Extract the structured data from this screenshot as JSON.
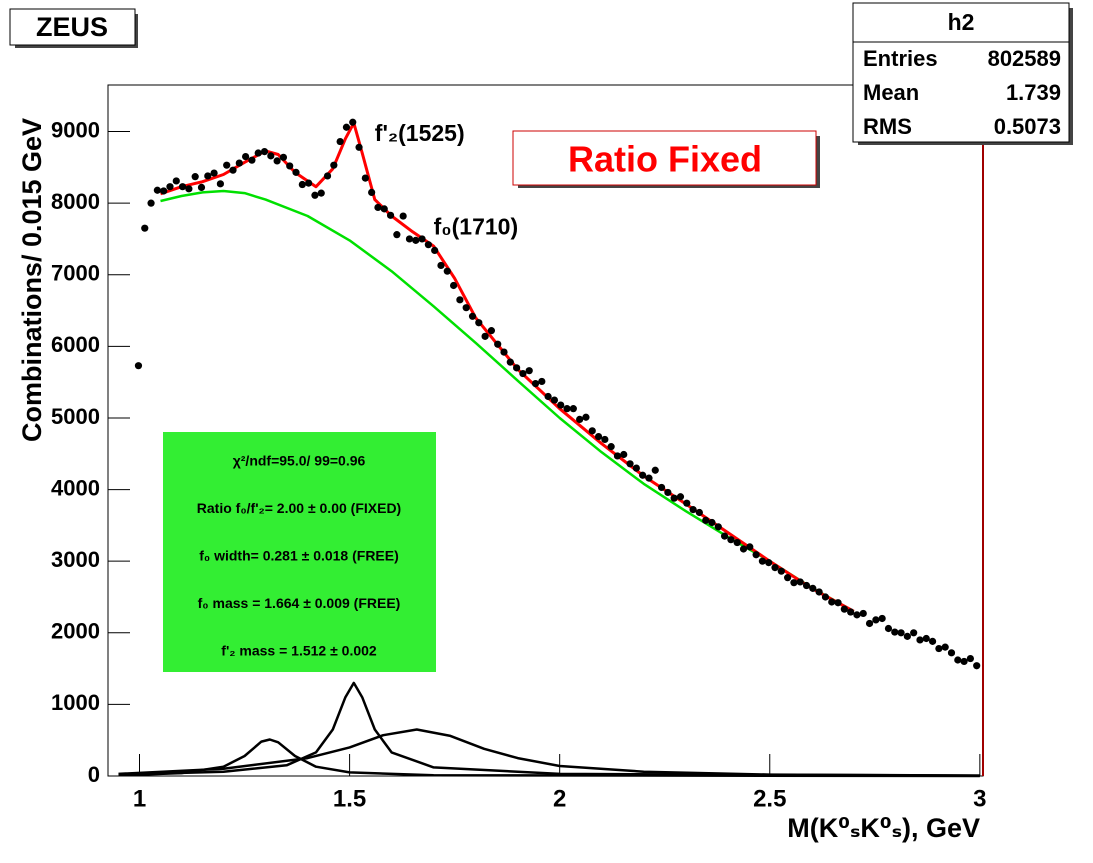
{
  "chart_data": {
    "type": "scatter",
    "x_label": "M(K⁰ₛK⁰ₛ), GeV",
    "y_label": "Combinations/ 0.015 GeV",
    "xlim": [
      0.925,
      3.0075
    ],
    "ylim": [
      0,
      9650
    ],
    "xticks": [
      1,
      1.5,
      2,
      2.5,
      3
    ],
    "yticks": [
      0,
      1000,
      2000,
      3000,
      4000,
      5000,
      6000,
      7000,
      8000,
      9000
    ],
    "color": "#000000",
    "x": [
      0.9975,
      1.0125,
      1.0275,
      1.0425,
      1.0575,
      1.0725,
      1.0875,
      1.1025,
      1.1175,
      1.1325,
      1.1475,
      1.1625,
      1.1775,
      1.1925,
      1.2075,
      1.2225,
      1.2375,
      1.2525,
      1.2675,
      1.2825,
      1.2975,
      1.3125,
      1.3275,
      1.3425,
      1.3575,
      1.3725,
      1.3875,
      1.4025,
      1.4175,
      1.4325,
      1.4475,
      1.4625,
      1.4775,
      1.4925,
      1.5075,
      1.5225,
      1.5375,
      1.5525,
      1.5675,
      1.5825,
      1.5975,
      1.6125,
      1.6275,
      1.6425,
      1.6575,
      1.6725,
      1.6875,
      1.7025,
      1.7175,
      1.7325,
      1.7475,
      1.7625,
      1.7775,
      1.7925,
      1.8075,
      1.8225,
      1.8375,
      1.8525,
      1.8675,
      1.8825,
      1.8975,
      1.9125,
      1.9275,
      1.9425,
      1.9575,
      1.9725,
      1.9875,
      2.0025,
      2.0175,
      2.0325,
      2.0475,
      2.0625,
      2.0775,
      2.0925,
      2.1075,
      2.1225,
      2.1375,
      2.1525,
      2.1675,
      2.1825,
      2.1975,
      2.2125,
      2.2275,
      2.2425,
      2.2575,
      2.2725,
      2.2875,
      2.3025,
      2.3175,
      2.3325,
      2.3475,
      2.3625,
      2.3775,
      2.3925,
      2.4075,
      2.4225,
      2.4375,
      2.4525,
      2.4675,
      2.4825,
      2.4975,
      2.5125,
      2.5275,
      2.5425,
      2.5575,
      2.5725,
      2.5875,
      2.6025,
      2.6175,
      2.6325,
      2.6475,
      2.6625,
      2.6775,
      2.6925,
      2.7075,
      2.7225,
      2.7375,
      2.7525,
      2.7675,
      2.7825,
      2.7975,
      2.8125,
      2.8275,
      2.8425,
      2.8575,
      2.8725,
      2.8875,
      2.9025,
      2.9175,
      2.9325,
      2.9475,
      2.9625,
      2.9775,
      2.9925
    ],
    "values": [
      5730,
      7650,
      8000,
      8180,
      8170,
      8230,
      8310,
      8230,
      8200,
      8370,
      8220,
      8380,
      8420,
      8270,
      8530,
      8460,
      8560,
      8650,
      8600,
      8700,
      8720,
      8660,
      8590,
      8640,
      8520,
      8430,
      8260,
      8280,
      8110,
      8140,
      8380,
      8530,
      8860,
      9060,
      9130,
      8780,
      8350,
      8150,
      7940,
      7920,
      7830,
      7560,
      7820,
      7500,
      7480,
      7500,
      7420,
      7340,
      7130,
      7050,
      6850,
      6650,
      6540,
      6420,
      6330,
      6140,
      6220,
      6030,
      5920,
      5780,
      5700,
      5620,
      5660,
      5480,
      5510,
      5300,
      5250,
      5180,
      5130,
      5130,
      4980,
      5010,
      4820,
      4740,
      4700,
      4600,
      4470,
      4490,
      4360,
      4300,
      4200,
      4160,
      4270,
      4030,
      3960,
      3880,
      3900,
      3810,
      3720,
      3680,
      3570,
      3540,
      3480,
      3350,
      3300,
      3260,
      3170,
      3200,
      3090,
      3000,
      2980,
      2910,
      2860,
      2770,
      2700,
      2710,
      2660,
      2620,
      2570,
      2500,
      2430,
      2420,
      2330,
      2290,
      2250,
      2270,
      2130,
      2180,
      2200,
      2060,
      2010,
      2000,
      1950,
      2000,
      1900,
      1920,
      1880,
      1780,
      1800,
      1720,
      1620,
      1600,
      1640,
      1540
    ],
    "curves": [
      {
        "color": "#00e000",
        "x": [
          1.05,
          1.1,
          1.15,
          1.2,
          1.25,
          1.3,
          1.4,
          1.5,
          1.6,
          1.7,
          1.8,
          1.9,
          2.0,
          2.1,
          2.2,
          2.3,
          2.4,
          2.5,
          2.6,
          2.7
        ],
        "values": [
          8030,
          8100,
          8150,
          8170,
          8140,
          8050,
          7820,
          7480,
          7050,
          6560,
          6050,
          5520,
          5000,
          4520,
          4080,
          3700,
          3340,
          3000,
          2630,
          2300
        ]
      },
      {
        "color": "#ff0000",
        "x": [
          1.05,
          1.1,
          1.15,
          1.2,
          1.25,
          1.3,
          1.33,
          1.37,
          1.42,
          1.46,
          1.49,
          1.51,
          1.53,
          1.56,
          1.6,
          1.65,
          1.7,
          1.75,
          1.8,
          1.9,
          2.0,
          2.1,
          2.2,
          2.3,
          2.4,
          2.5,
          2.6,
          2.7
        ],
        "values": [
          8130,
          8230,
          8300,
          8400,
          8570,
          8730,
          8680,
          8430,
          8230,
          8480,
          8900,
          9120,
          8700,
          8050,
          7820,
          7600,
          7400,
          6950,
          6400,
          5680,
          5130,
          4640,
          4190,
          3800,
          3400,
          3000,
          2620,
          2300
        ]
      },
      {
        "color": "#000000",
        "x": [
          0.95,
          1.1,
          1.2,
          1.25,
          1.29,
          1.31,
          1.33,
          1.37,
          1.42,
          1.5,
          1.7,
          3.0
        ],
        "values": [
          10,
          40,
          130,
          280,
          480,
          510,
          470,
          280,
          130,
          50,
          10,
          0
        ]
      },
      {
        "color": "#000000",
        "x": [
          0.95,
          1.2,
          1.35,
          1.42,
          1.46,
          1.49,
          1.51,
          1.53,
          1.56,
          1.6,
          1.7,
          2.0,
          3.0
        ],
        "values": [
          20,
          60,
          150,
          330,
          650,
          1100,
          1300,
          1100,
          650,
          330,
          120,
          30,
          5
        ]
      },
      {
        "color": "#000000",
        "x": [
          0.95,
          1.2,
          1.4,
          1.5,
          1.58,
          1.66,
          1.74,
          1.82,
          1.9,
          2.0,
          2.2,
          2.5,
          3.0
        ],
        "values": [
          30,
          100,
          250,
          400,
          570,
          650,
          560,
          380,
          250,
          140,
          60,
          20,
          5
        ]
      }
    ],
    "annotations": [
      {
        "text": "f'₂(1525)",
        "x": 1.56,
        "y": 8950
      },
      {
        "text": "f₀(1710)",
        "x": 1.7,
        "y": 7650
      }
    ],
    "label_box": "ZEUS",
    "ratio_box": "Ratio Fixed",
    "fit_box": [
      "χ²/ndf=95.0/ 99=0.96",
      "Ratio f₀/f'₂= 2.00 ± 0.00 (FIXED)",
      "f₀ width= 0.281 ± 0.018 (FREE)",
      "f₀ mass = 1.664 ± 0.009 (FREE)",
      "f'₂ mass = 1.512 ± 0.002"
    ],
    "stats": {
      "title": "h2",
      "rows": [
        [
          "Entries",
          802589
        ],
        [
          "Mean",
          1.739
        ],
        [
          "RMS",
          0.5073
        ]
      ]
    }
  }
}
